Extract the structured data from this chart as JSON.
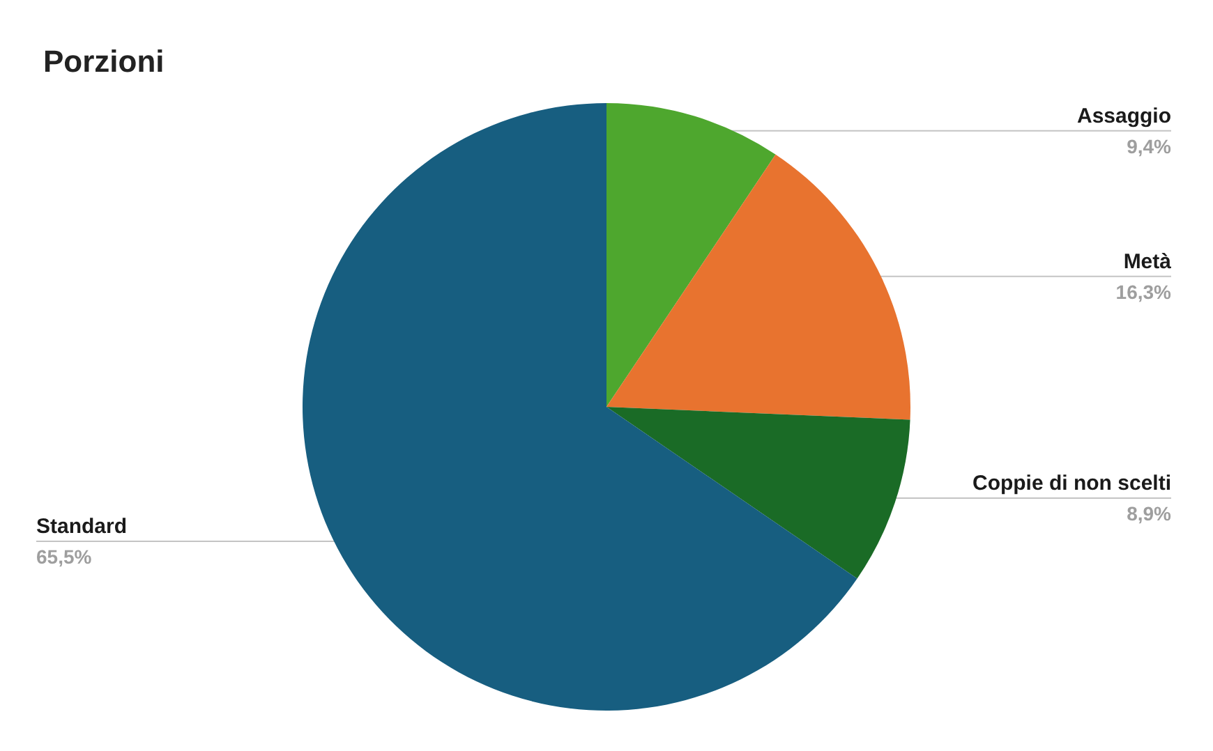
{
  "chart_data": {
    "type": "pie",
    "title": "Porzioni",
    "categories": [
      "Assaggio",
      "Metà",
      "Coppie di non scelti",
      "Standard"
    ],
    "values": [
      9.4,
      16.3,
      8.9,
      65.5
    ],
    "colors": [
      "#4ea72e",
      "#e8732f",
      "#1a6b26",
      "#175e80"
    ],
    "value_labels": [
      "9,4%",
      "16,3%",
      "8,9%",
      "65,5%"
    ]
  }
}
